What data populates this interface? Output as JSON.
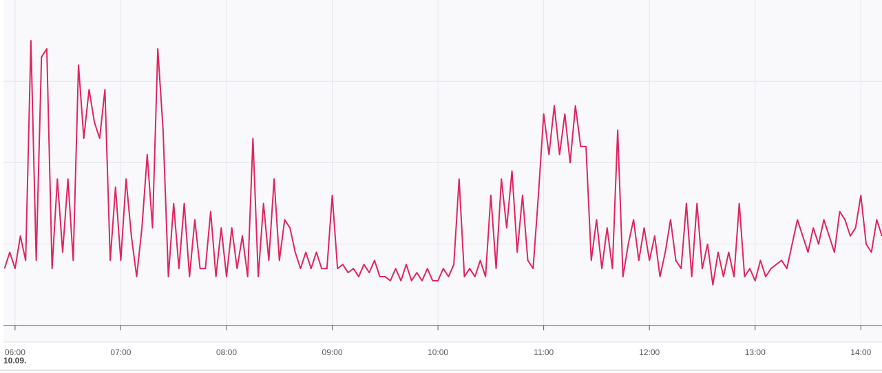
{
  "chart_data": {
    "type": "line",
    "date_label": "10.09.",
    "x": [
      5.9,
      5.95,
      6,
      6.05,
      6.1,
      6.15,
      6.2,
      6.25,
      6.3,
      6.35,
      6.4,
      6.45,
      6.5,
      6.55,
      6.6,
      6.65,
      6.7,
      6.75,
      6.8,
      6.85,
      6.9,
      6.95,
      7,
      7.05,
      7.1,
      7.15,
      7.2,
      7.25,
      7.3,
      7.35,
      7.4,
      7.45,
      7.5,
      7.55,
      7.6,
      7.65,
      7.7,
      7.75,
      7.8,
      7.85,
      7.9,
      7.95,
      8,
      8.05,
      8.1,
      8.15,
      8.2,
      8.25,
      8.3,
      8.35,
      8.4,
      8.45,
      8.5,
      8.55,
      8.6,
      8.65,
      8.7,
      8.75,
      8.8,
      8.85,
      8.9,
      8.95,
      9,
      9.05,
      9.1,
      9.15,
      9.2,
      9.25,
      9.3,
      9.35,
      9.4,
      9.45,
      9.5,
      9.55,
      9.6,
      9.65,
      9.7,
      9.75,
      9.8,
      9.85,
      9.9,
      9.95,
      10,
      10.05,
      10.1,
      10.15,
      10.2,
      10.25,
      10.3,
      10.35,
      10.4,
      10.45,
      10.5,
      10.55,
      10.6,
      10.65,
      10.7,
      10.75,
      10.8,
      10.85,
      10.9,
      10.95,
      11,
      11.05,
      11.1,
      11.15,
      11.2,
      11.25,
      11.3,
      11.35,
      11.4,
      11.45,
      11.5,
      11.55,
      11.6,
      11.65,
      11.7,
      11.75,
      11.8,
      11.85,
      11.9,
      11.95,
      12,
      12.05,
      12.1,
      12.15,
      12.2,
      12.25,
      12.3,
      12.35,
      12.4,
      12.45,
      12.5,
      12.55,
      12.6,
      12.65,
      12.7,
      12.75,
      12.8,
      12.85,
      12.9,
      12.95,
      13,
      13.05,
      13.1,
      13.15,
      13.2,
      13.25,
      13.3,
      13.35,
      13.4,
      13.45,
      13.5,
      13.55,
      13.6,
      13.65,
      13.7,
      13.75,
      13.8,
      13.85,
      13.9,
      13.95,
      14,
      14.05,
      14.1,
      14.15,
      14.2
    ],
    "series": [
      {
        "color": "#e0245e",
        "values": [
          0.7,
          0.9,
          0.7,
          1.1,
          0.8,
          3.5,
          0.8,
          3.3,
          3.4,
          0.7,
          1.8,
          0.9,
          1.8,
          0.8,
          3.2,
          2.3,
          2.9,
          2.5,
          2.3,
          2.9,
          0.8,
          1.7,
          0.8,
          1.8,
          1.1,
          0.6,
          1.2,
          2.1,
          1.2,
          3.4,
          2.4,
          0.6,
          1.5,
          0.7,
          1.5,
          0.6,
          1.3,
          0.7,
          0.7,
          1.4,
          0.6,
          1.2,
          0.6,
          1.2,
          0.7,
          1.1,
          0.6,
          2.3,
          0.6,
          1.5,
          0.8,
          1.8,
          0.8,
          1.3,
          1.2,
          0.9,
          0.7,
          0.9,
          0.7,
          0.9,
          0.7,
          0.7,
          1.6,
          0.7,
          0.75,
          0.65,
          0.7,
          0.6,
          0.75,
          0.65,
          0.8,
          0.6,
          0.6,
          0.55,
          0.7,
          0.55,
          0.75,
          0.55,
          0.65,
          0.55,
          0.7,
          0.55,
          0.55,
          0.7,
          0.6,
          0.75,
          1.8,
          0.6,
          0.7,
          0.6,
          0.8,
          0.6,
          1.6,
          0.7,
          1.8,
          1.2,
          1.9,
          0.9,
          1.6,
          0.8,
          0.7,
          1.6,
          2.6,
          2.1,
          2.7,
          2.1,
          2.6,
          2.0,
          2.7,
          2.2,
          2.2,
          0.8,
          1.3,
          0.7,
          1.2,
          0.7,
          2.4,
          0.6,
          1.0,
          1.3,
          0.8,
          1.2,
          0.8,
          1.1,
          0.6,
          0.9,
          1.3,
          0.8,
          0.7,
          1.5,
          0.6,
          1.5,
          0.7,
          1.0,
          0.5,
          0.9,
          0.6,
          0.9,
          0.6,
          1.5,
          0.6,
          0.7,
          0.55,
          0.8,
          0.6,
          0.7,
          0.75,
          0.8,
          0.7,
          1.0,
          1.3,
          1.1,
          0.9,
          1.2,
          1.0,
          1.3,
          1.1,
          0.9,
          1.4,
          1.3,
          1.1,
          1.2,
          1.6,
          1.0,
          0.9,
          1.3,
          1.1
        ]
      }
    ],
    "xlim": [
      5.89,
      14.2
    ],
    "xticks": [
      {
        "value": 6,
        "label": "06:00"
      },
      {
        "value": 7,
        "label": "07:00"
      },
      {
        "value": 8,
        "label": "08:00"
      },
      {
        "value": 9,
        "label": "09:00"
      },
      {
        "value": 10,
        "label": "10:00"
      },
      {
        "value": 11,
        "label": "11:00"
      },
      {
        "value": 12,
        "label": "12:00"
      },
      {
        "value": 13,
        "label": "13:00"
      },
      {
        "value": 14,
        "label": "14:00"
      }
    ],
    "ylim": [
      0,
      4
    ],
    "yticks": [
      1,
      2,
      3
    ],
    "grid": true
  }
}
